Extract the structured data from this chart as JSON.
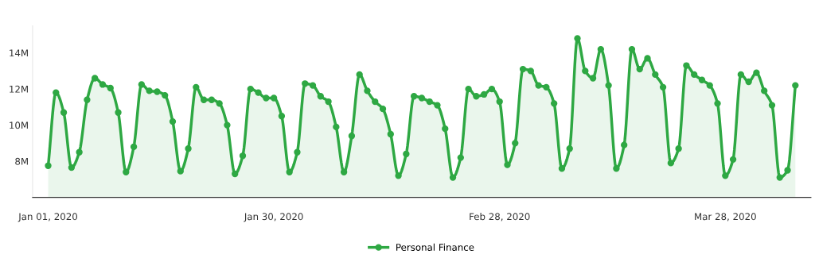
{
  "chart_data": {
    "type": "area",
    "x": [
      "2020-01-01",
      "2020-01-02",
      "2020-01-03",
      "2020-01-04",
      "2020-01-05",
      "2020-01-06",
      "2020-01-07",
      "2020-01-08",
      "2020-01-09",
      "2020-01-10",
      "2020-01-11",
      "2020-01-12",
      "2020-01-13",
      "2020-01-14",
      "2020-01-15",
      "2020-01-16",
      "2020-01-17",
      "2020-01-18",
      "2020-01-19",
      "2020-01-20",
      "2020-01-21",
      "2020-01-22",
      "2020-01-23",
      "2020-01-24",
      "2020-01-25",
      "2020-01-26",
      "2020-01-27",
      "2020-01-28",
      "2020-01-29",
      "2020-01-30",
      "2020-01-31",
      "2020-02-01",
      "2020-02-02",
      "2020-02-03",
      "2020-02-04",
      "2020-02-05",
      "2020-02-06",
      "2020-02-07",
      "2020-02-08",
      "2020-02-09",
      "2020-02-10",
      "2020-02-11",
      "2020-02-12",
      "2020-02-13",
      "2020-02-14",
      "2020-02-15",
      "2020-02-16",
      "2020-02-17",
      "2020-02-18",
      "2020-02-19",
      "2020-02-20",
      "2020-02-21",
      "2020-02-22",
      "2020-02-23",
      "2020-02-24",
      "2020-02-25",
      "2020-02-26",
      "2020-02-27",
      "2020-02-28",
      "2020-02-29",
      "2020-03-01",
      "2020-03-02",
      "2020-03-03",
      "2020-03-04",
      "2020-03-05",
      "2020-03-06",
      "2020-03-07",
      "2020-03-08",
      "2020-03-09",
      "2020-03-10",
      "2020-03-11",
      "2020-03-12",
      "2020-03-13",
      "2020-03-14",
      "2020-03-15",
      "2020-03-16",
      "2020-03-17",
      "2020-03-18",
      "2020-03-19",
      "2020-03-20",
      "2020-03-21",
      "2020-03-22",
      "2020-03-23",
      "2020-03-24",
      "2020-03-25",
      "2020-03-26",
      "2020-03-27",
      "2020-03-28",
      "2020-03-29",
      "2020-03-30",
      "2020-03-31",
      "2020-04-01",
      "2020-04-02",
      "2020-04-03",
      "2020-04-04",
      "2020-04-05",
      "2020-04-06"
    ],
    "series": [
      {
        "name": "Personal Finance",
        "color": "#2ea843",
        "values": [
          7.75,
          11.8,
          10.7,
          7.65,
          8.5,
          11.4,
          12.6,
          12.25,
          12.05,
          10.7,
          7.4,
          8.8,
          12.25,
          11.9,
          11.85,
          11.65,
          10.2,
          7.45,
          8.7,
          12.1,
          11.4,
          11.4,
          11.2,
          10.0,
          7.3,
          8.3,
          12.0,
          11.8,
          11.5,
          11.5,
          10.5,
          7.4,
          8.5,
          12.3,
          12.2,
          11.6,
          11.3,
          9.9,
          7.4,
          9.4,
          12.8,
          11.9,
          11.3,
          10.9,
          9.5,
          7.2,
          8.4,
          11.6,
          11.5,
          11.3,
          11.1,
          9.8,
          7.1,
          8.2,
          12.0,
          11.6,
          11.7,
          12.0,
          11.3,
          7.8,
          9.0,
          13.1,
          13.0,
          12.2,
          12.1,
          11.2,
          7.6,
          8.7,
          14.8,
          13.0,
          12.6,
          14.2,
          12.2,
          7.6,
          8.9,
          14.2,
          13.1,
          13.7,
          12.8,
          12.1,
          7.9,
          8.7,
          13.3,
          12.8,
          12.5,
          12.2,
          11.2,
          7.2,
          8.1,
          12.8,
          12.4,
          12.9,
          11.9,
          11.1,
          7.1,
          7.5,
          12.2
        ]
      }
    ],
    "ylim": [
      6,
      15.5
    ],
    "yticks": [
      {
        "value": 8,
        "label": "8M"
      },
      {
        "value": 10,
        "label": "10M"
      },
      {
        "value": 12,
        "label": "12M"
      },
      {
        "value": 14,
        "label": "14M"
      }
    ],
    "xlim": [
      "2019-12-30",
      "2020-04-08"
    ],
    "xticks": [
      {
        "value": "2020-01-01",
        "label": "Jan 01, 2020"
      },
      {
        "value": "2020-01-30",
        "label": "Jan 30, 2020"
      },
      {
        "value": "2020-02-28",
        "label": "Feb 28, 2020"
      },
      {
        "value": "2020-03-28",
        "label": "Mar 28, 2020"
      }
    ],
    "marker": "circle",
    "line_style": "solid",
    "grid": false,
    "legend": "bottom"
  }
}
